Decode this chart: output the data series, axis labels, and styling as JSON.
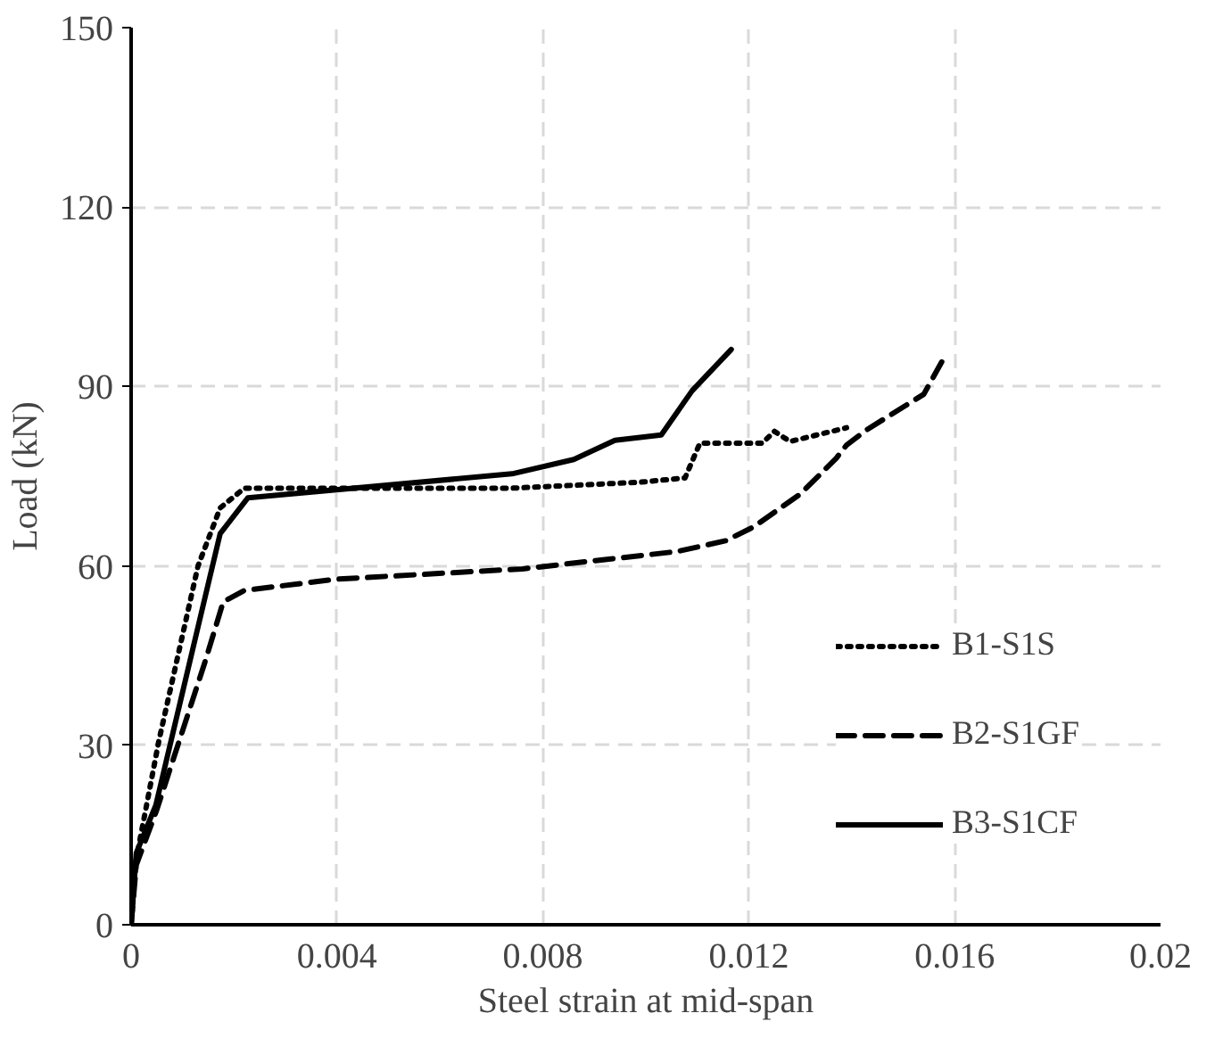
{
  "chart_data": {
    "type": "line",
    "xlabel": "Steel strain at mid-span",
    "ylabel": "Load (kN)",
    "xlim": [
      0,
      0.02
    ],
    "ylim": [
      0,
      150
    ],
    "xticks": [
      0,
      0.004,
      0.008,
      0.012,
      0.016,
      0.02
    ],
    "yticks": [
      0,
      30,
      60,
      90,
      120,
      150
    ],
    "grid": true,
    "legend": "right",
    "marker": "none",
    "series": [
      {
        "name": "B1-S1S",
        "color": "#000000",
        "line_style": "dotted",
        "x": [
          0,
          0.0001,
          0.00054,
          0.0013,
          0.00173,
          0.0022,
          0.0074,
          0.0099,
          0.01076,
          0.01105,
          0.01226,
          0.0125,
          0.0128,
          0.0139
        ],
        "values": [
          0,
          11,
          30.8,
          60,
          69.7,
          73,
          73,
          74,
          74.7,
          80.5,
          80.5,
          82.5,
          80.8,
          83.1
        ]
      },
      {
        "name": "B2-S1GF",
        "color": "#000000",
        "line_style": "dashed",
        "x": [
          0,
          0.0001,
          0.00049,
          0.00143,
          0.00179,
          0.0022,
          0.004,
          0.0076,
          0.0106,
          0.01155,
          0.01209,
          0.013,
          0.0137,
          0.0139,
          0.0143,
          0.0154,
          0.0158
        ],
        "values": [
          0,
          10,
          19,
          43.8,
          54,
          55.9,
          57.8,
          59.5,
          62.4,
          64.2,
          66.5,
          72,
          78,
          80.2,
          82.8,
          88.7,
          94.9
        ]
      },
      {
        "name": "B3-S1CF",
        "color": "#000000",
        "line_style": "solid",
        "x": [
          0,
          0.0001,
          0.00048,
          0.00125,
          0.00173,
          0.00227,
          0.0074,
          0.0086,
          0.0094,
          0.0103,
          0.0109,
          0.01166
        ],
        "values": [
          0,
          12,
          20,
          48,
          65.4,
          71.4,
          75.4,
          77.8,
          81,
          81.9,
          89.3,
          96.2
        ]
      }
    ]
  }
}
